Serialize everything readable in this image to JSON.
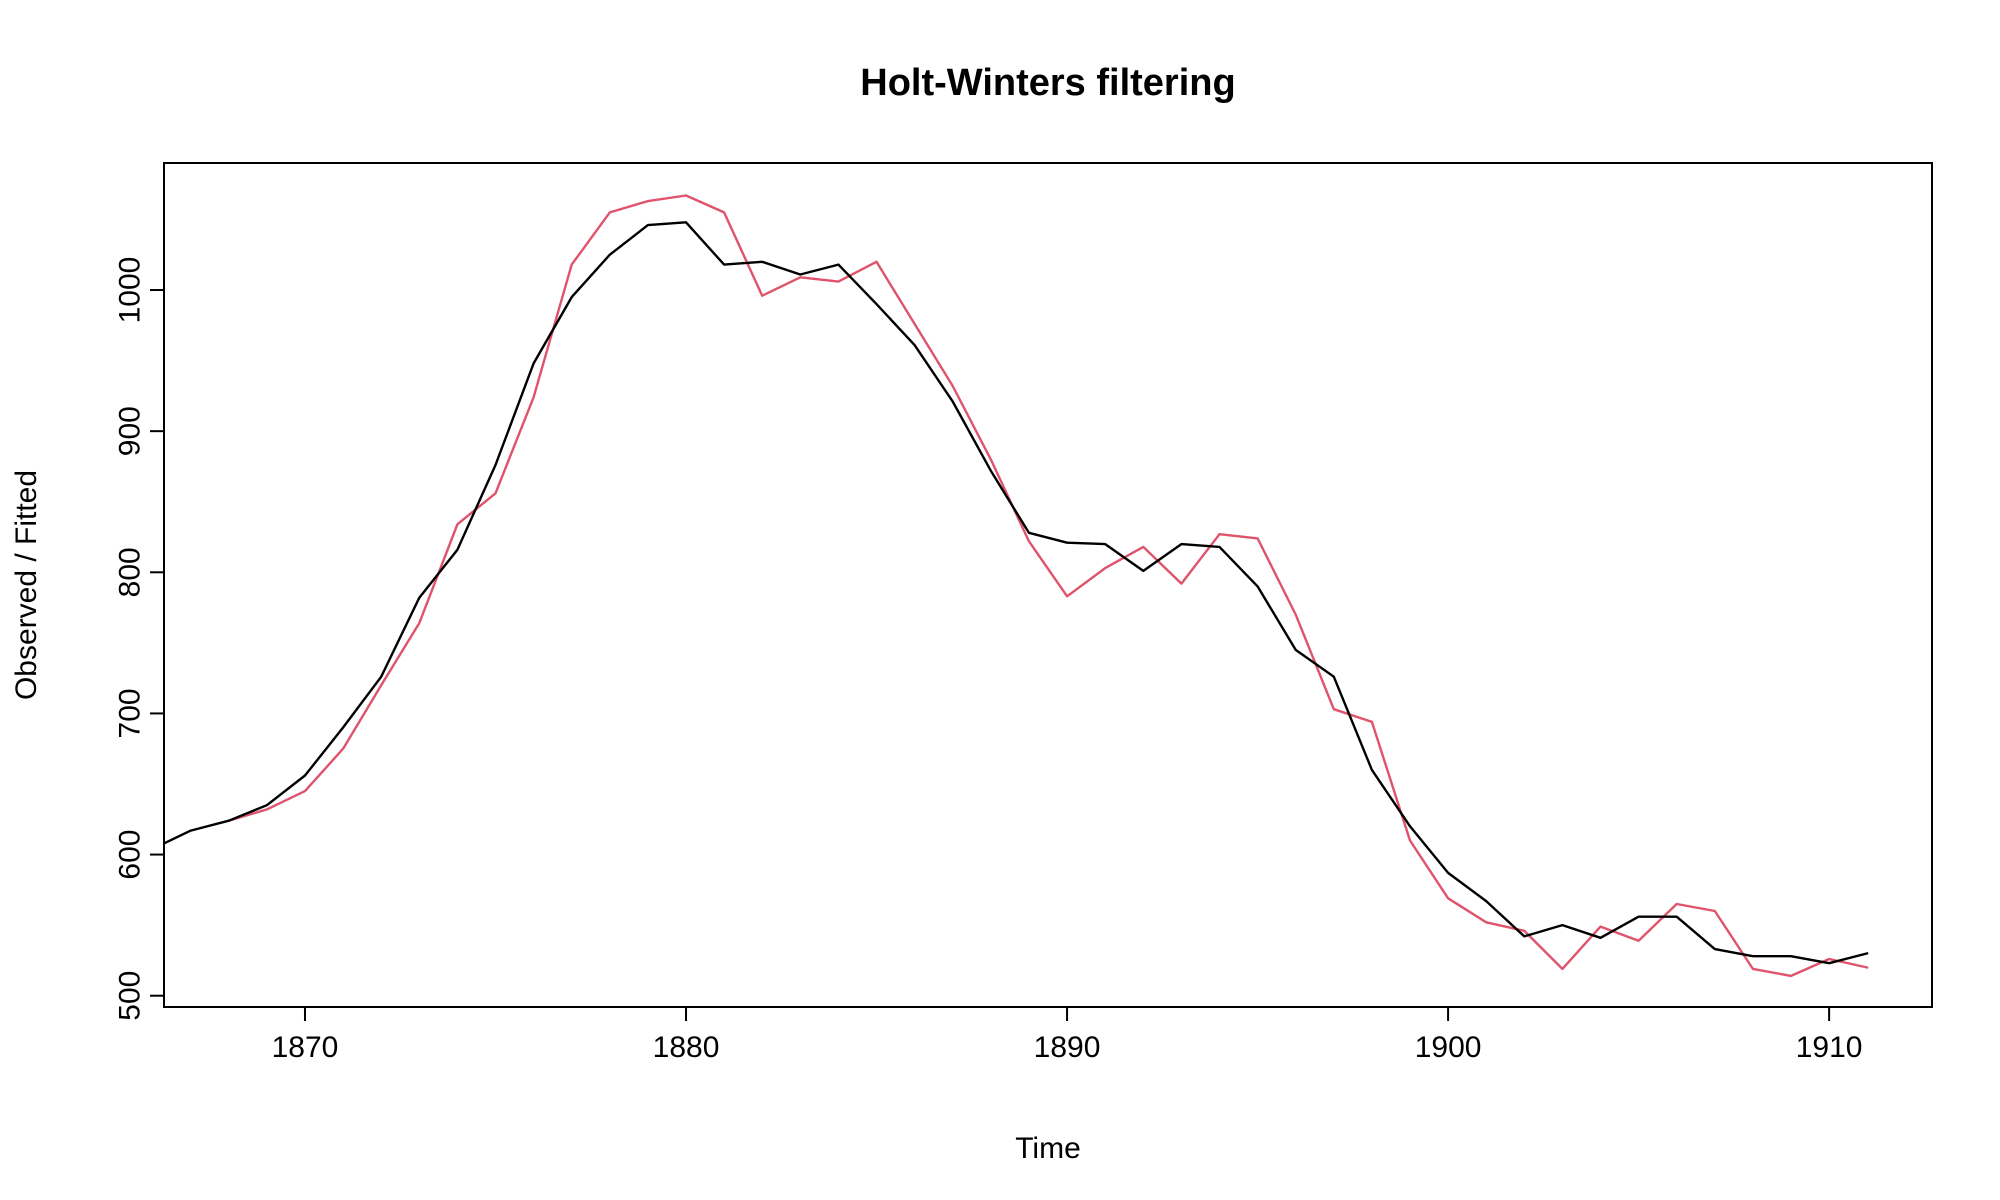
{
  "chart_data": {
    "type": "line",
    "title": "Holt-Winters filtering",
    "xlabel": "Time",
    "ylabel": "Observed / Fitted",
    "xlim": [
      1866.3,
      1912.7
    ],
    "ylim": [
      492,
      1090
    ],
    "x_ticks": [
      1870,
      1880,
      1890,
      1900,
      1910
    ],
    "y_ticks": [
      500,
      600,
      700,
      800,
      900,
      1000
    ],
    "grid": false,
    "legend": "none",
    "series": [
      {
        "color": "#000000",
        "x": [
          1866,
          1867,
          1868,
          1869,
          1870,
          1871,
          1872,
          1873,
          1874,
          1875,
          1876,
          1877,
          1878,
          1879,
          1880,
          1881,
          1882,
          1883,
          1884,
          1885,
          1886,
          1887,
          1888,
          1889,
          1890,
          1891,
          1892,
          1893,
          1894,
          1895,
          1896,
          1897,
          1898,
          1899,
          1900,
          1901,
          1902,
          1903,
          1904,
          1905,
          1906,
          1907,
          1908,
          1909,
          1910,
          1911
        ],
        "values": [
          604,
          617,
          624,
          635,
          656,
          690,
          726,
          782,
          816,
          876,
          948,
          995,
          1025,
          1046,
          1048,
          1018,
          1020,
          1011,
          1018,
          990,
          961,
          921,
          872,
          828,
          821,
          820,
          801,
          820,
          818,
          790,
          745,
          726,
          660,
          620,
          587,
          567,
          542,
          550,
          541,
          556,
          556,
          533,
          528,
          528,
          523,
          530
        ]
      },
      {
        "color": "#df536b",
        "x": [
          1868,
          1869,
          1870,
          1871,
          1872,
          1873,
          1874,
          1875,
          1876,
          1877,
          1878,
          1879,
          1880,
          1881,
          1882,
          1883,
          1884,
          1885,
          1886,
          1887,
          1888,
          1889,
          1890,
          1891,
          1892,
          1893,
          1894,
          1895,
          1896,
          1897,
          1898,
          1899,
          1900,
          1901,
          1902,
          1903,
          1904,
          1905,
          1906,
          1907,
          1908,
          1909,
          1910,
          1911
        ],
        "values": [
          624,
          632,
          645,
          675,
          720,
          764,
          834,
          856,
          924,
          1018,
          1055,
          1063,
          1067,
          1055,
          996,
          1009,
          1006,
          1020,
          976,
          932,
          880,
          822,
          783,
          803,
          818,
          792,
          827,
          824,
          770,
          703,
          694,
          610,
          569,
          552,
          546,
          519,
          549,
          539,
          565,
          560,
          519,
          514,
          526,
          520
        ]
      }
    ]
  }
}
